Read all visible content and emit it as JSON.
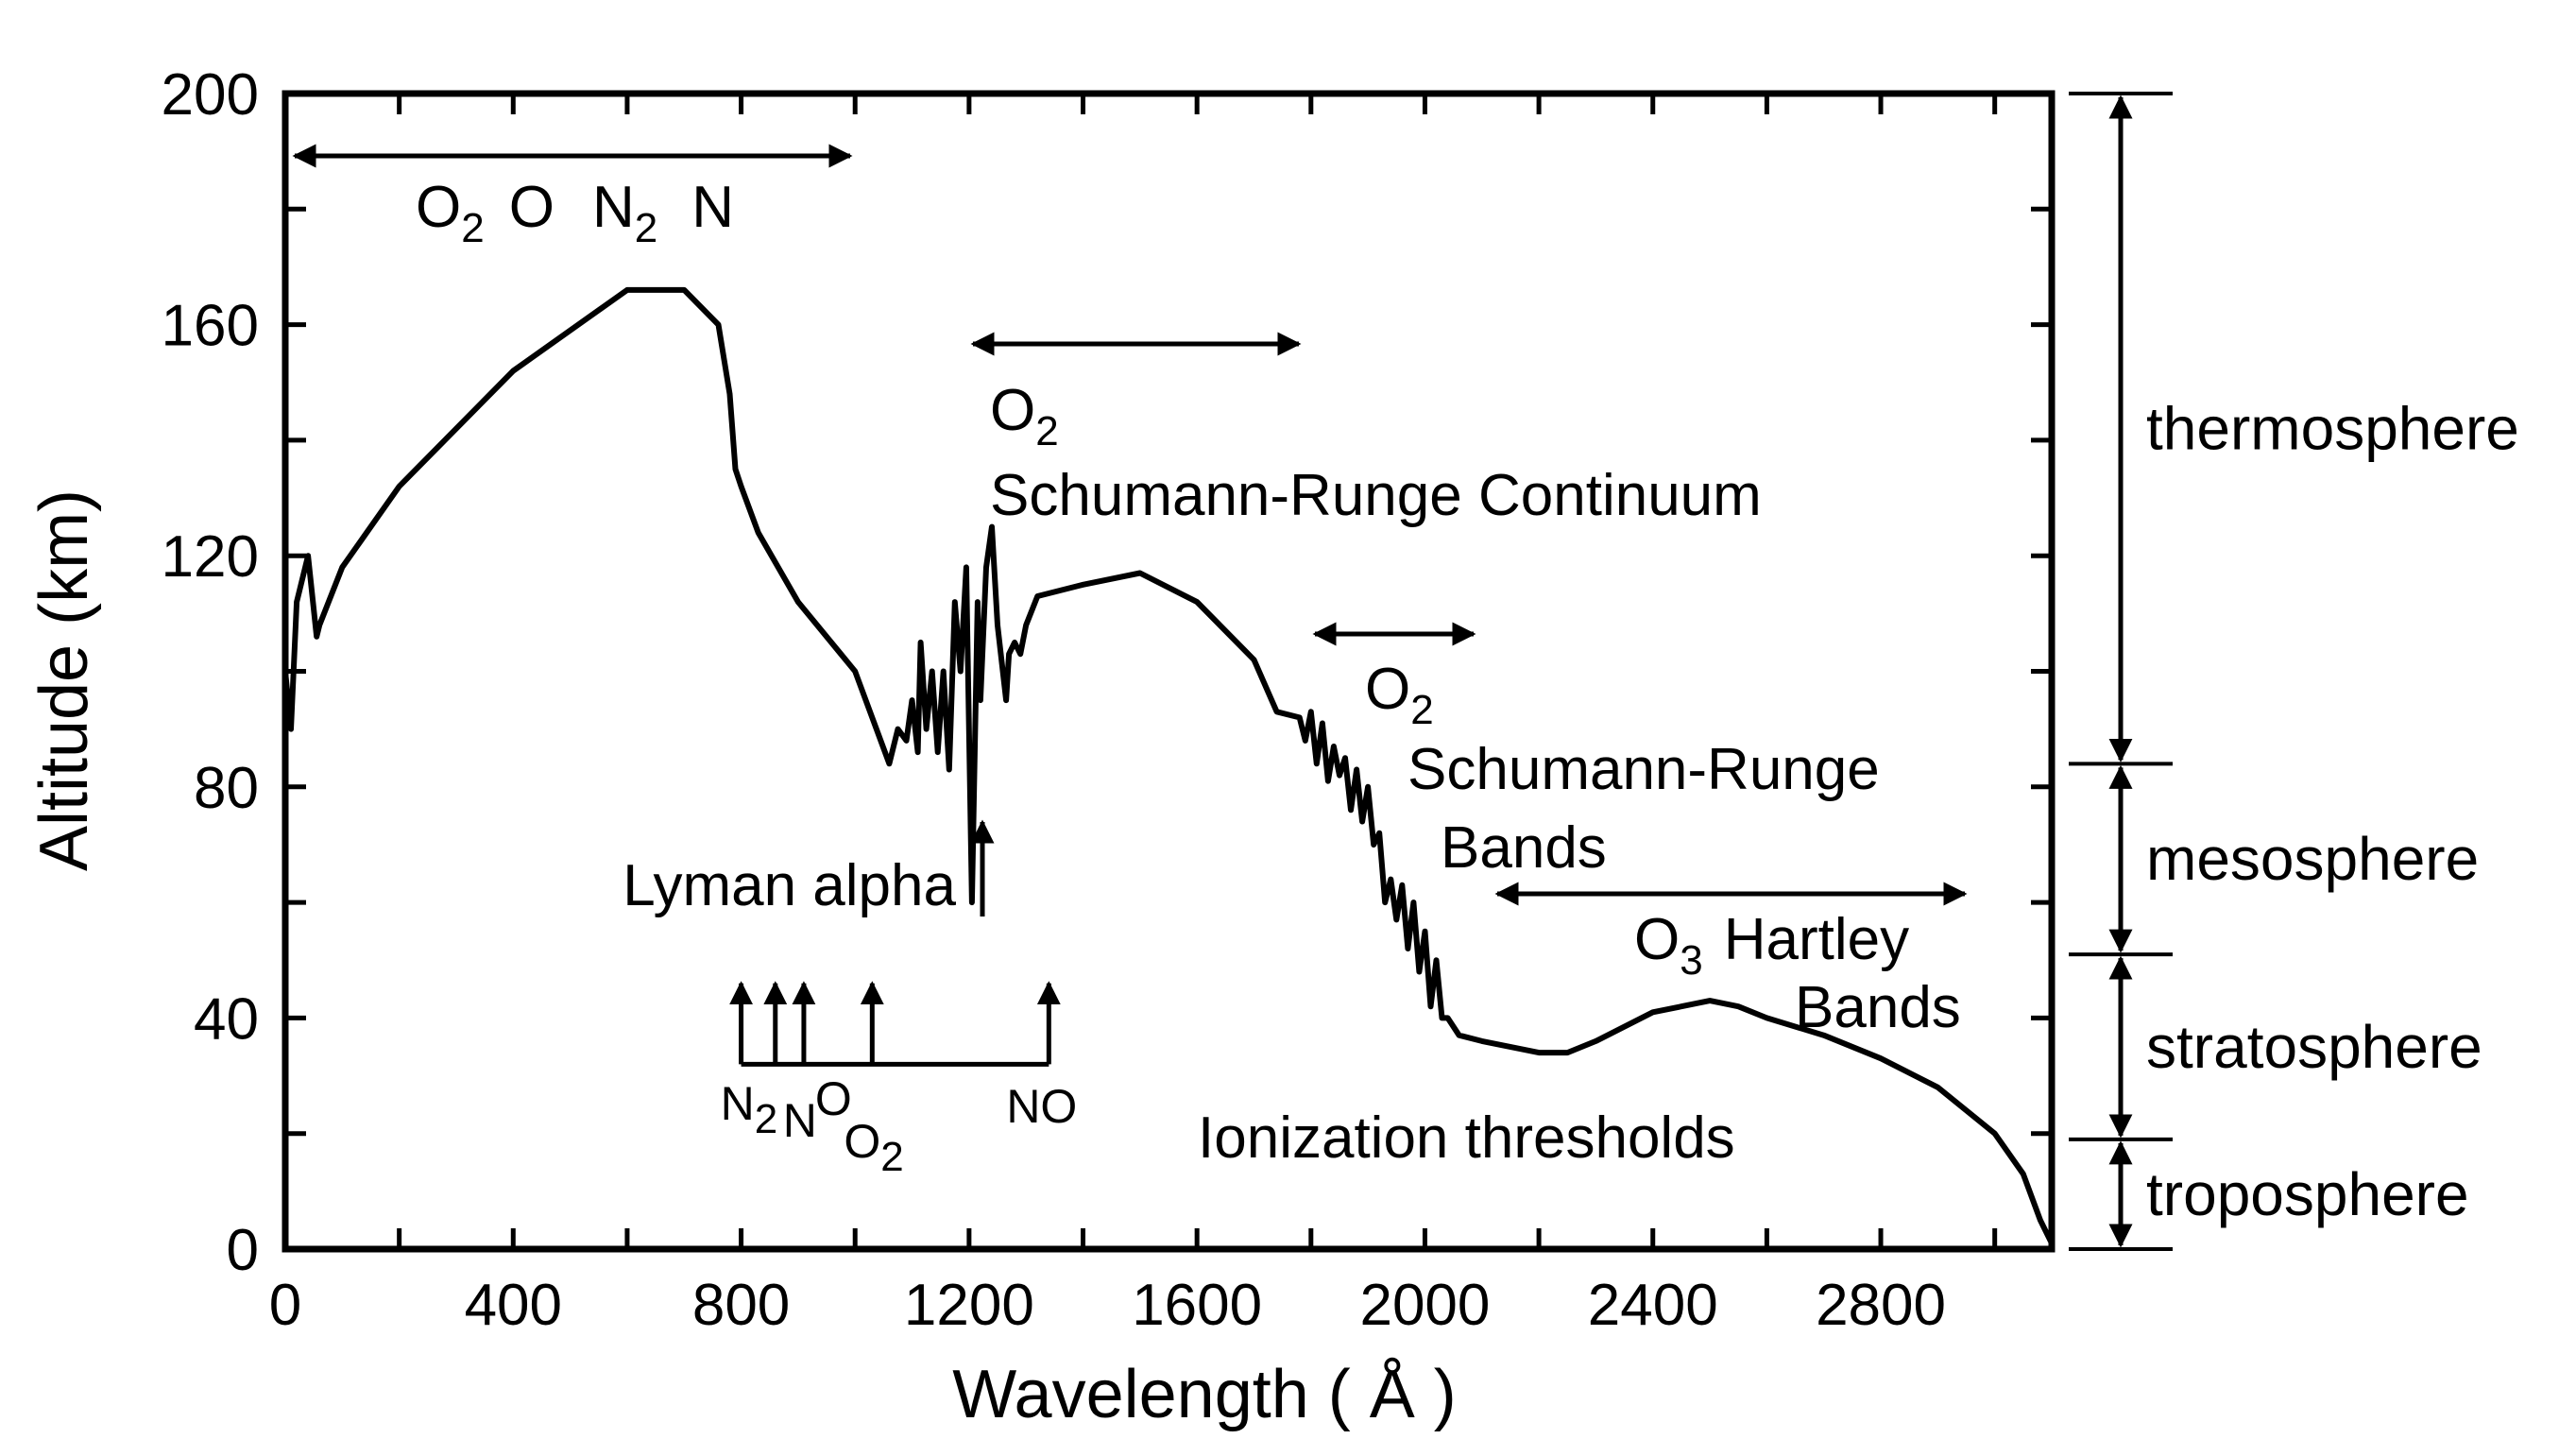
{
  "chart_data": {
    "type": "line",
    "xlabel": "Wavelength ( Å )",
    "ylabel": "Altitude (km)",
    "xlim": [
      0,
      3100
    ],
    "ylim": [
      0,
      200
    ],
    "x_ticks": [
      0,
      400,
      800,
      1200,
      1600,
      2000,
      2400,
      2800
    ],
    "y_ticks": [
      0,
      40,
      80,
      120,
      160,
      200
    ],
    "grid": false,
    "series": [
      {
        "x": [
          0,
          10,
          20,
          40,
          55,
          60,
          100,
          200,
          400,
          600,
          700,
          760,
          780,
          790,
          800,
          830,
          900,
          1000,
          1060,
          1075,
          1090,
          1100,
          1110,
          1115,
          1125,
          1135,
          1145,
          1155,
          1165,
          1175,
          1185,
          1195,
          1205,
          1215,
          1220,
          1230,
          1240,
          1250,
          1265,
          1270,
          1280,
          1290,
          1300,
          1320,
          1400,
          1500,
          1600,
          1700,
          1740,
          1780,
          1790,
          1800,
          1810,
          1820,
          1830,
          1840,
          1850,
          1860,
          1870,
          1880,
          1890,
          1900,
          1910,
          1920,
          1930,
          1940,
          1950,
          1960,
          1970,
          1980,
          1990,
          2000,
          2010,
          2020,
          2030,
          2040,
          2060,
          2100,
          2200,
          2250,
          2300,
          2400,
          2500,
          2550,
          2600,
          2700,
          2800,
          2900,
          3000,
          3050,
          3080,
          3100
        ],
        "y": [
          100,
          90,
          112,
          120,
          106,
          108,
          118,
          132,
          152,
          166,
          166,
          160,
          148,
          135,
          132,
          124,
          112,
          100,
          84,
          90,
          88,
          95,
          86,
          105,
          90,
          100,
          86,
          100,
          83,
          112,
          100,
          118,
          60,
          112,
          95,
          118,
          125,
          108,
          95,
          103,
          105,
          103,
          108,
          113,
          115,
          117,
          112,
          102,
          93,
          92,
          88,
          93,
          84,
          91,
          81,
          87,
          82,
          85,
          76,
          83,
          74,
          80,
          70,
          72,
          60,
          64,
          57,
          63,
          52,
          60,
          48,
          55,
          42,
          50,
          40,
          40,
          37,
          36,
          34,
          34,
          36,
          41,
          43,
          42,
          40,
          37,
          33,
          28,
          20,
          13,
          5,
          1
        ]
      }
    ],
    "annotations": {
      "species_top": [
        "O",
        "2",
        "O",
        "N",
        "2",
        "N"
      ],
      "sr_continuum": [
        "O",
        "2",
        "Schumann-Runge Continuum"
      ],
      "sr_bands": [
        "O",
        "2",
        "Schumann-Runge",
        "Bands"
      ],
      "hartley": [
        "O",
        "3",
        "Hartley",
        "Bands"
      ],
      "lyman": "Lyman alpha",
      "ionization": "Ionization thresholds",
      "thresholds": [
        {
          "x": 800,
          "parts": [
            "N",
            "2"
          ]
        },
        {
          "x": 860,
          "parts": [
            "N"
          ]
        },
        {
          "x": 910,
          "parts": [
            "O"
          ]
        },
        {
          "x": 1030,
          "parts": [
            "O",
            "2"
          ]
        },
        {
          "x": 1340,
          "parts": [
            "NO"
          ]
        }
      ]
    },
    "layers": [
      "thermosphere",
      "mesosphere",
      "stratosphere",
      "troposphere"
    ],
    "layer_bounds_km": [
      200,
      84,
      51,
      19,
      0
    ]
  }
}
